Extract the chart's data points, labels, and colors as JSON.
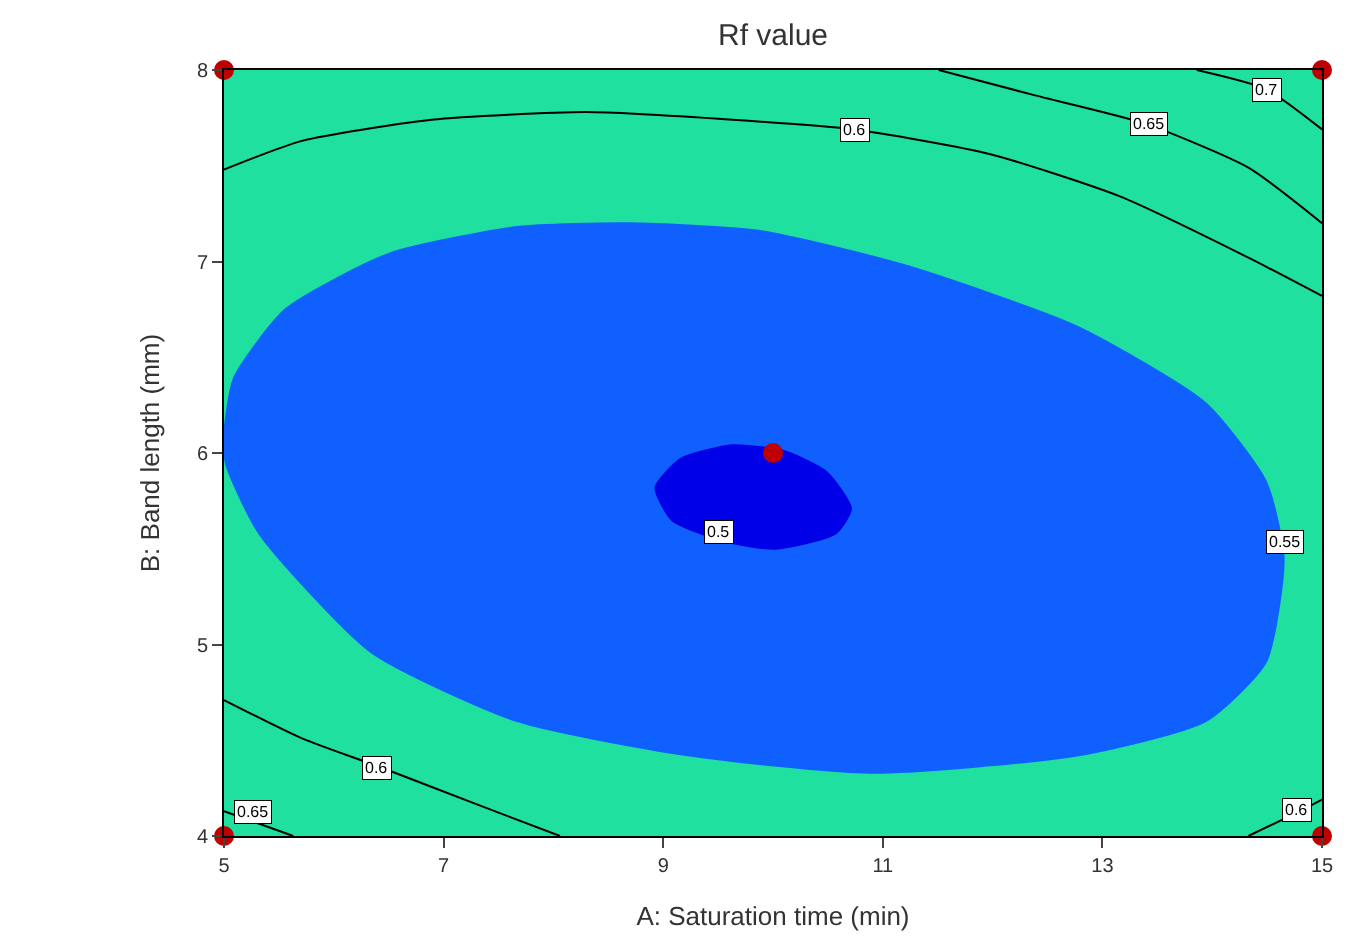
{
  "chart_data": {
    "type": "scatter",
    "title": "Rf value",
    "xlabel": "A: Saturation time (min)",
    "ylabel": "B: Band length (mm)",
    "series": [
      {
        "type": "area",
        "color": "#1060ff",
        "x": [
          5,
          5.09,
          5.56,
          6.5,
          7.67,
          8.69,
          9.87,
          11.2,
          12.77,
          13.94,
          14.49,
          14.65,
          14.49,
          13.94,
          12.77,
          10.89,
          9.24,
          7.67,
          6.34,
          5.32,
          5.02,
          5
        ],
        "values": [
          6.08,
          6.39,
          6.75,
          7.04,
          7.18,
          7.2,
          7.16,
          6.98,
          6.66,
          6.26,
          5.85,
          5.45,
          4.91,
          4.6,
          4.42,
          4.33,
          4.42,
          4.6,
          4.96,
          5.58,
          5.94,
          6.08
        ]
      },
      {
        "type": "area",
        "color": "#0000e8",
        "x": [
          8.93,
          9.16,
          9.63,
          10.1,
          10.49,
          10.71,
          10.57,
          10.02,
          9.55,
          9.08,
          8.93
        ],
        "values": [
          5.82,
          5.97,
          6.04,
          6.01,
          5.9,
          5.71,
          5.58,
          5.5,
          5.54,
          5.65,
          5.82
        ]
      },
      {
        "type": "line",
        "color": "#000000",
        "x": [
          5,
          5.71,
          6.89,
          8.3,
          9.63,
          10.73,
          11.98,
          13.16,
          14.33,
          15
        ],
        "values": [
          7.48,
          7.63,
          7.74,
          7.78,
          7.74,
          7.69,
          7.56,
          7.34,
          7.02,
          6.82
        ]
      },
      {
        "type": "line",
        "color": "#000000",
        "x": [
          5,
          5.71,
          6.42,
          7.28,
          8.06
        ],
        "values": [
          4.71,
          4.51,
          4.36,
          4.17,
          4
        ]
      },
      {
        "type": "line",
        "color": "#000000",
        "x": [
          14.33,
          14.8,
          15
        ],
        "values": [
          4,
          4.13,
          4.19
        ]
      },
      {
        "type": "line",
        "color": "#000000",
        "x": [
          11.51,
          12.37,
          13.39,
          14.33,
          15
        ],
        "values": [
          8,
          7.87,
          7.72,
          7.49,
          7.2
        ]
      },
      {
        "type": "line",
        "color": "#000000",
        "x": [
          5,
          5.63
        ],
        "values": [
          4.13,
          4
        ]
      },
      {
        "type": "line",
        "color": "#000000",
        "x": [
          13.86,
          14.49,
          15
        ],
        "values": [
          8,
          7.9,
          7.69
        ]
      },
      {
        "marker": "circle",
        "color": "#c00000",
        "x": [
          5,
          5,
          15,
          15,
          10
        ],
        "values": [
          4,
          8,
          4,
          8,
          6
        ]
      }
    ],
    "annotations": [
      {
        "text": "0.5",
        "x": 9.51,
        "y": 5.59
      },
      {
        "text": "0.55",
        "x": 14.66,
        "y": 5.54
      },
      {
        "text": "0.6",
        "x": 10.75,
        "y": 7.69
      },
      {
        "text": "0.65",
        "x": 13.43,
        "y": 7.72
      },
      {
        "text": "0.7",
        "x": 14.49,
        "y": 7.9
      },
      {
        "text": "0.6",
        "x": 6.4,
        "y": 4.36
      },
      {
        "text": "0.65",
        "x": 5.27,
        "y": 4.13
      },
      {
        "text": "0.6",
        "x": 14.78,
        "y": 4.14
      }
    ],
    "xlim": [
      5,
      15
    ],
    "ylim": [
      4,
      8
    ],
    "xticks": [
      5,
      7,
      9,
      11,
      13,
      15
    ],
    "yticks": [
      4,
      5,
      6,
      7,
      8
    ],
    "grid": false
  }
}
